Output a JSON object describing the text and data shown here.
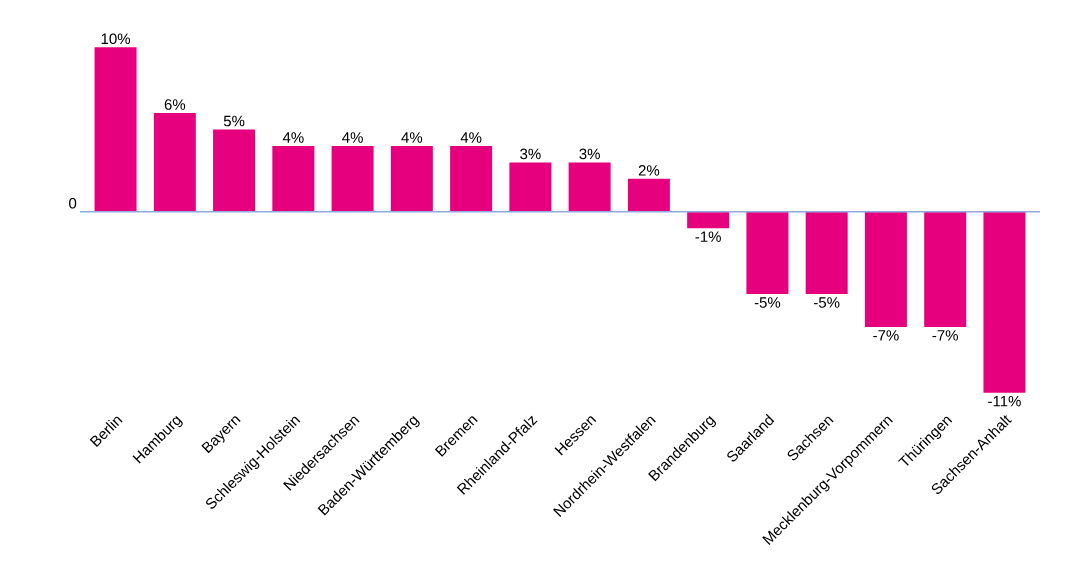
{
  "chart_data": {
    "type": "bar",
    "categories": [
      "Berlin",
      "Hamburg",
      "Bayern",
      "Schleswig-Holstein",
      "Niedersachsen",
      "Baden-Württemberg",
      "Bremen",
      "Rheinland-Pfalz",
      "Hessen",
      "Nordrhein-Westfalen",
      "Brandenburg",
      "Saarland",
      "Sachsen",
      "Mecklenburg-Vorpommern",
      "Thüringen",
      "Sachsen-Anhalt"
    ],
    "values": [
      10,
      6,
      5,
      4,
      4,
      4,
      4,
      3,
      3,
      2,
      -1,
      -5,
      -5,
      -7,
      -7,
      -11
    ],
    "value_labels": [
      "10%",
      "6%",
      "5%",
      "4%",
      "4%",
      "4%",
      "4%",
      "3%",
      "3%",
      "2%",
      "-1%",
      "-5%",
      "-5%",
      "-7%",
      "-7%",
      "-11%"
    ],
    "color": "#e6007e",
    "ref_lines": [
      {
        "axis": "y",
        "value": 0,
        "label": "0",
        "color": "#8faadc"
      }
    ]
  }
}
